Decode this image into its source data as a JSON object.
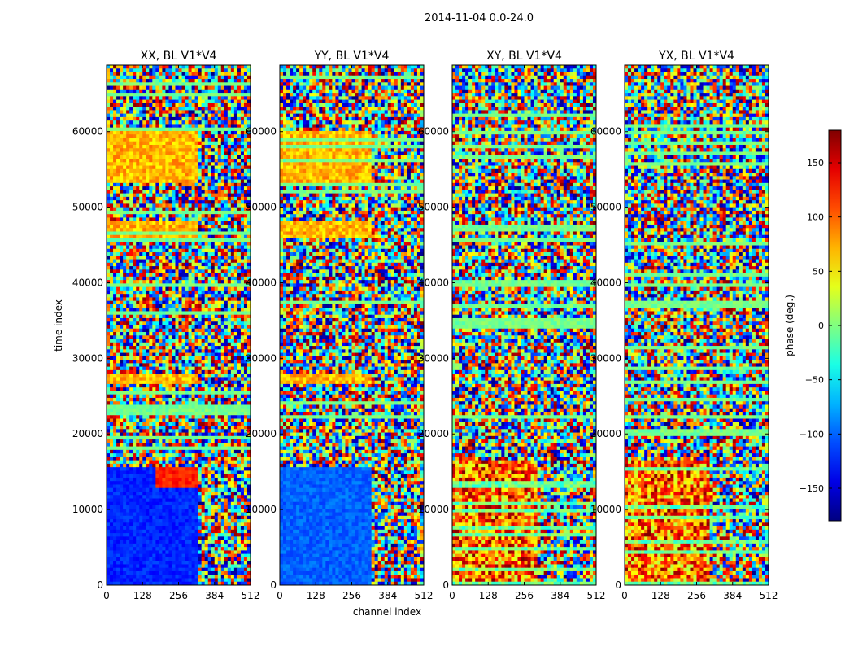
{
  "chart_data": {
    "type": "heatmap",
    "suptitle": "2014-11-04 0.0-24.0",
    "xlabel": "channel index",
    "ylabel": "time index",
    "xlim": [
      0,
      512
    ],
    "ylim": [
      0,
      68800
    ],
    "xticks": [
      0,
      128,
      256,
      384,
      512
    ],
    "yticks": [
      0,
      10000,
      20000,
      30000,
      40000,
      50000,
      60000
    ],
    "panels": [
      {
        "title": "XX, BL V1*V4"
      },
      {
        "title": "YY, BL V1*V4"
      },
      {
        "title": "XY, BL V1*V4"
      },
      {
        "title": "YX, BL V1*V4"
      }
    ],
    "colorbar": {
      "label": "phase (deg.)",
      "vmin": -180,
      "vmax": 180,
      "ticks": [
        -150,
        -100,
        -50,
        0,
        50,
        100,
        150
      ],
      "tick_labels": [
        "−150",
        "−100",
        "−50",
        "0",
        "50",
        "100",
        "150"
      ],
      "colormap": "jet"
    }
  }
}
